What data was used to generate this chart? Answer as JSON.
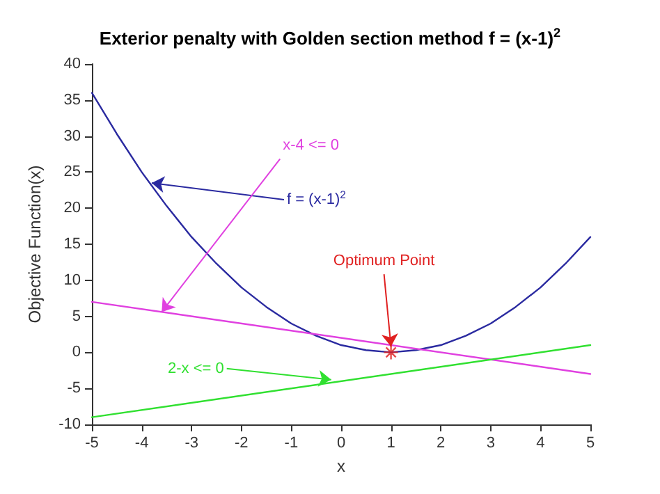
{
  "chart_data": {
    "type": "line",
    "title": "Exterior penalty with Golden section method f = (x-1)$^{2}$",
    "xlabel": "x",
    "ylabel": "Objective Function(x)",
    "xlim": [
      -5,
      5
    ],
    "xticks": [
      -5,
      -4,
      -3,
      -2,
      -1,
      0,
      1,
      2,
      3,
      4,
      5
    ],
    "ylim": [
      -10,
      40
    ],
    "yticks": [
      -10,
      -5,
      0,
      5,
      10,
      15,
      20,
      25,
      30,
      35,
      40
    ],
    "grid": false,
    "marker": "none",
    "line_style": "solid",
    "series": [
      {
        "color": "#2a2aa0",
        "x": [
          -5,
          -4.5,
          -4,
          -3.5,
          -3,
          -2.5,
          -2,
          -1.5,
          -1,
          -0.5,
          0,
          0.5,
          1,
          1.5,
          2,
          2.5,
          3,
          3.5,
          4,
          4.5,
          5
        ],
        "values": [
          36,
          30.3,
          25,
          20.3,
          16,
          12.3,
          9,
          6.3,
          4,
          2.3,
          1,
          0.3,
          0,
          0.3,
          1,
          2.3,
          4,
          6.3,
          9,
          12.3,
          16
        ]
      },
      {
        "color": "#e040e0",
        "x": [
          -5,
          5
        ],
        "values": [
          7,
          -3
        ]
      },
      {
        "color": "#30e030",
        "x": [
          -5,
          5
        ],
        "values": [
          -9,
          1
        ]
      },
      {
        "type": "scatter",
        "color": "#e02020",
        "marker": "cross",
        "x": [
          1
        ],
        "values": [
          0
        ]
      }
    ],
    "annotations": [
      {
        "text": "f = (x-1)$^{2}$",
        "x": -3.8,
        "y": 23.5
      },
      {
        "text": "x-4 <= 0",
        "x": -3.6,
        "y": 5.6
      },
      {
        "text": "2-x <= 0",
        "x": -0.2,
        "y": -3.8
      },
      {
        "text": "Optimum Point",
        "x": 1,
        "y": 0.8
      }
    ]
  }
}
